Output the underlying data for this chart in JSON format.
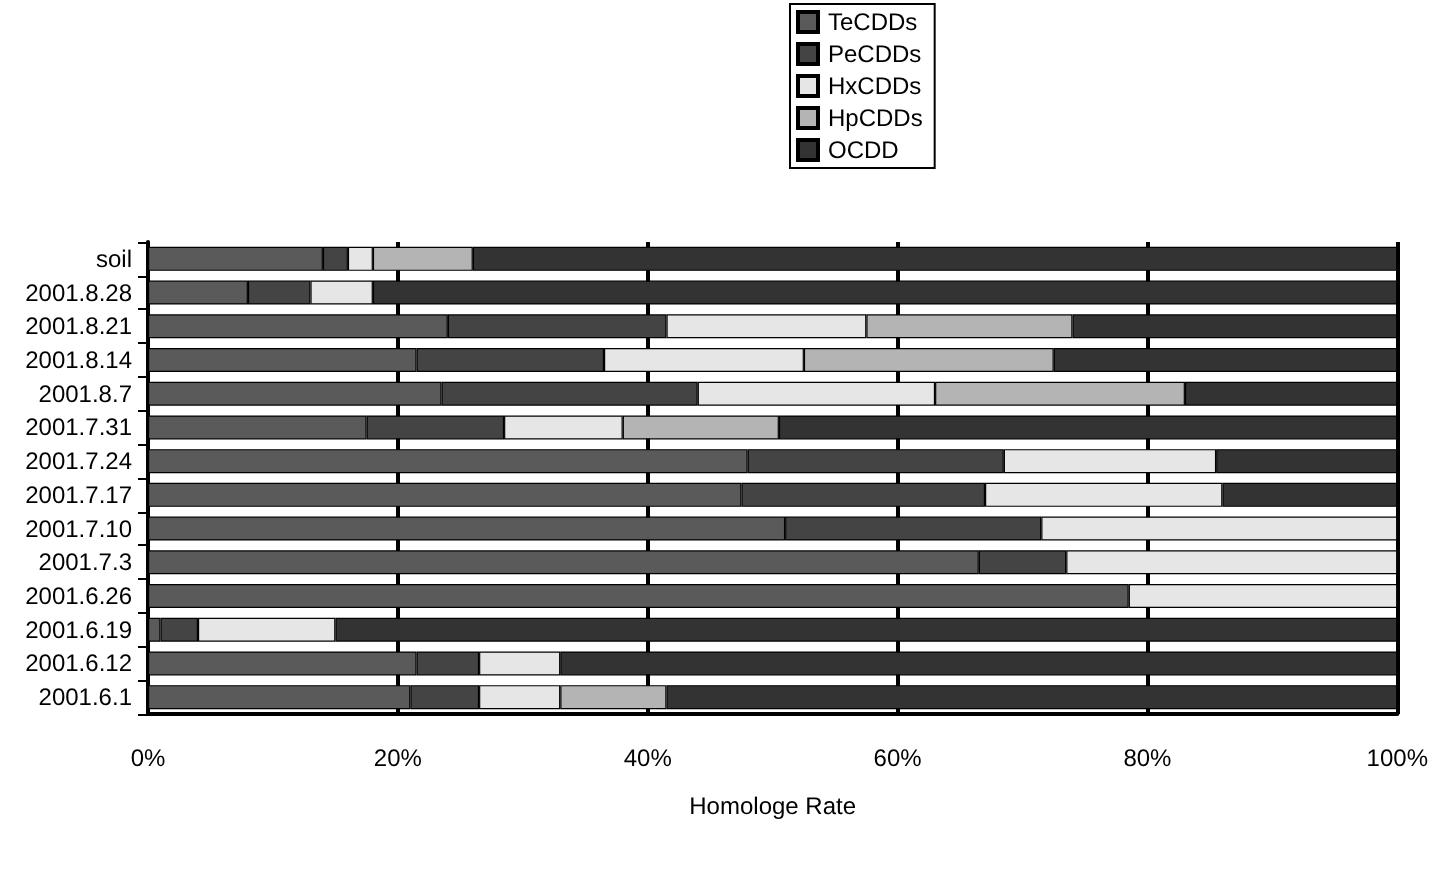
{
  "chart_data": {
    "type": "bar",
    "orientation": "horizontal",
    "stacked": true,
    "xlabel": "Homologe Rate",
    "categories": [
      "soil",
      "2001.8.28",
      "2001.8.21",
      "2001.8.14",
      "2001.8.7",
      "2001.7.31",
      "2001.7.24",
      "2001.7.17",
      "2001.7.10",
      "2001.7.3",
      "2001.6.26",
      "2001.6.19",
      "2001.6.12",
      "2001.6.1"
    ],
    "series": [
      {
        "name": "TeCDDs",
        "color": "#5a5a5a",
        "values": [
          14,
          8,
          24,
          21.5,
          23.5,
          17.5,
          48,
          47.5,
          51,
          66.5,
          78.5,
          1,
          21.5,
          21
        ]
      },
      {
        "name": "PeCDDs",
        "color": "#444444",
        "values": [
          2,
          5,
          17.5,
          15,
          20.5,
          11,
          20.5,
          19.5,
          20.5,
          7,
          0,
          3,
          5,
          5.5
        ]
      },
      {
        "name": "HxCDDs",
        "color": "#e6e6e6",
        "values": [
          2,
          5,
          16,
          16,
          19,
          9.5,
          17,
          19,
          28.5,
          26.5,
          21.5,
          11,
          6.5,
          6.5
        ]
      },
      {
        "name": "HpCDDs",
        "color": "#b4b4b4",
        "values": [
          8,
          0,
          16.5,
          20,
          20,
          12.5,
          0,
          0,
          0,
          0,
          0,
          0,
          0,
          8.5
        ]
      },
      {
        "name": "OCDD",
        "color": "#333333",
        "values": [
          74,
          82,
          26,
          27.5,
          17,
          49.5,
          14.5,
          14,
          0,
          0,
          0,
          85,
          67,
          58.5
        ]
      }
    ],
    "xlim": [
      0,
      100
    ],
    "xticks": [
      {
        "value": 0,
        "label": "0%"
      },
      {
        "value": 20,
        "label": "20%"
      },
      {
        "value": 40,
        "label": "40%"
      },
      {
        "value": 60,
        "label": "60%"
      },
      {
        "value": 80,
        "label": "80%"
      },
      {
        "value": 100,
        "label": "100%"
      }
    ],
    "grid": "x",
    "legend": "top"
  }
}
